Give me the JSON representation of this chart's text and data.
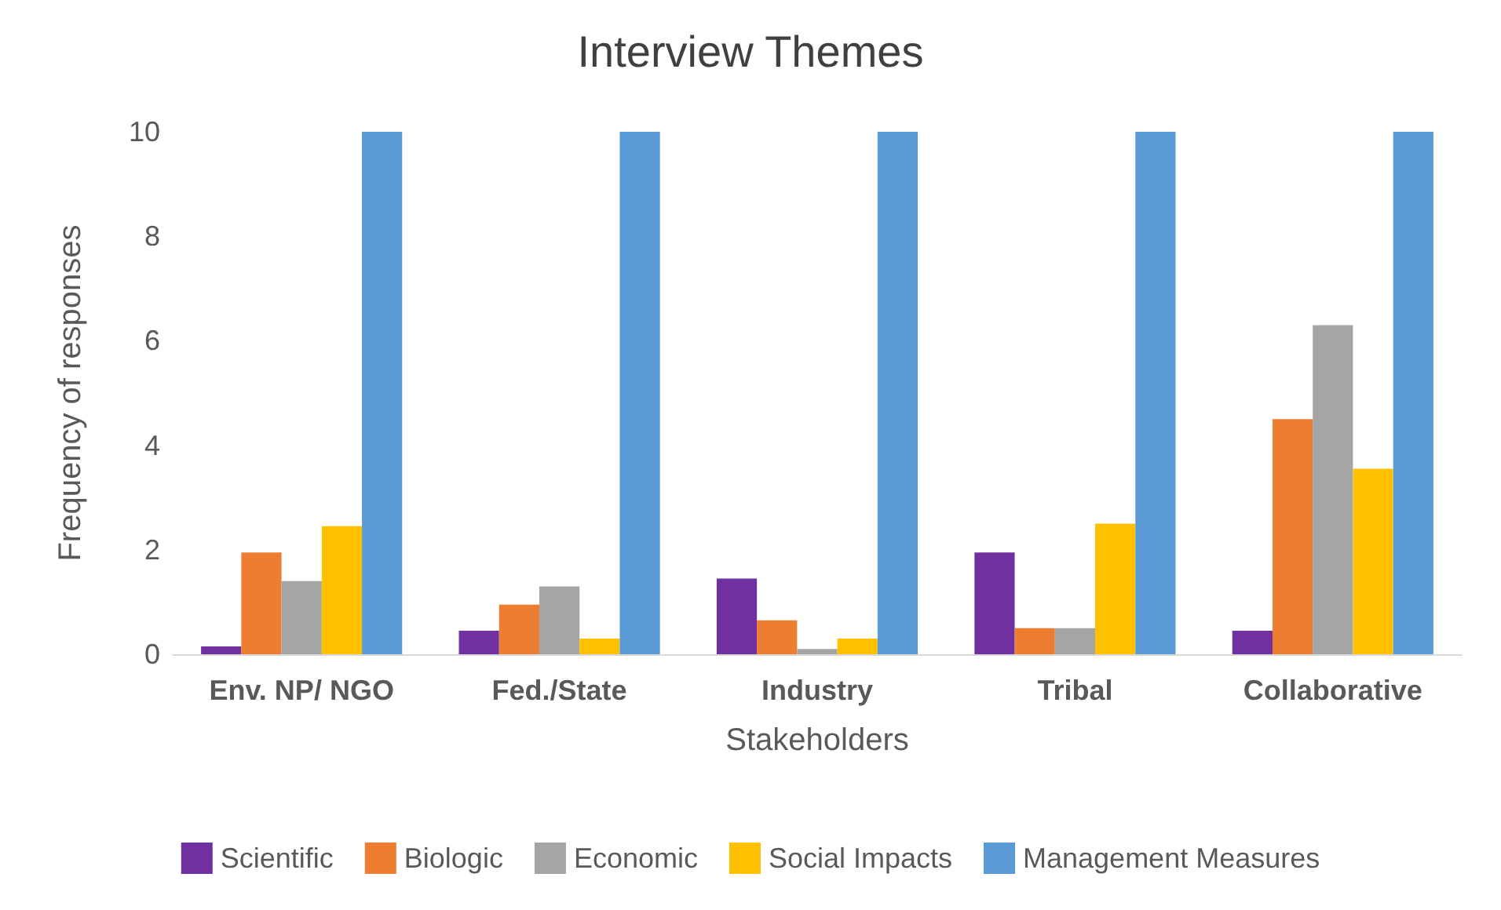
{
  "chart_data": {
    "type": "bar",
    "title": "Interview Themes",
    "xlabel": "Stakeholders",
    "ylabel": "Frequency of responses",
    "categories": [
      "Env. NP/ NGO",
      "Fed./State",
      "Industry",
      "Tribal",
      "Collaborative"
    ],
    "series": [
      {
        "name": "Scientific",
        "color": "#7030a0",
        "values": [
          0.15,
          0.45,
          1.45,
          1.95,
          0.45
        ]
      },
      {
        "name": "Biologic",
        "color": "#ed7d31",
        "values": [
          1.95,
          0.95,
          0.65,
          0.5,
          4.5
        ]
      },
      {
        "name": "Economic",
        "color": "#a5a5a5",
        "values": [
          1.4,
          1.3,
          0.1,
          0.5,
          6.3
        ]
      },
      {
        "name": "Social Impacts",
        "color": "#ffc000",
        "values": [
          2.45,
          0.3,
          0.3,
          2.5,
          3.55
        ]
      },
      {
        "name": "Management Measures",
        "color": "#5b9bd5",
        "values": [
          10,
          10,
          10,
          10,
          10
        ]
      }
    ],
    "ylim": [
      0,
      10
    ],
    "yticks": [
      0,
      2,
      4,
      6,
      8,
      10
    ],
    "grid": false,
    "legend": "bottom"
  }
}
